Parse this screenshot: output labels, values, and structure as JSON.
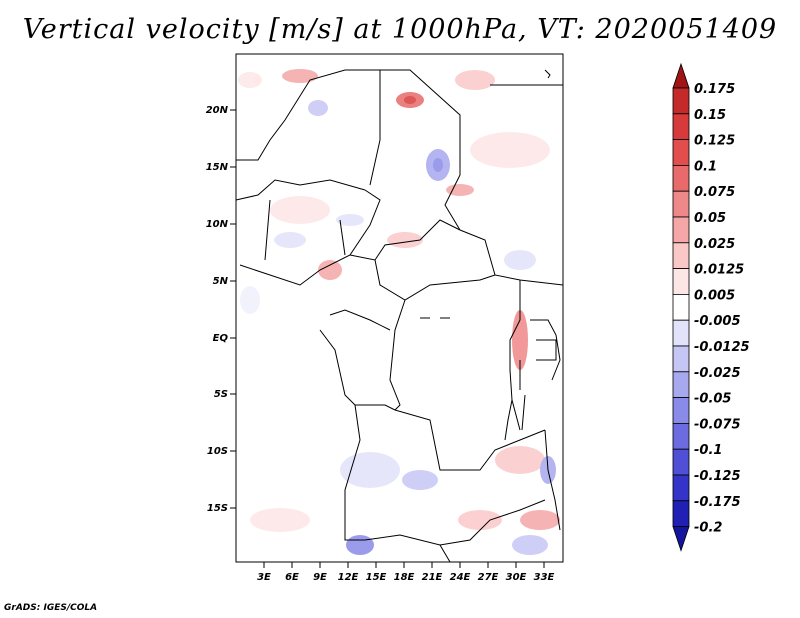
{
  "title": "Vertical velocity [m/s] at 1000hPa, VT: 2020051409",
  "credit": "GrADS: IGES/COLA",
  "axes": {
    "lat_ticks": [
      "20N",
      "15N",
      "10N",
      "5N",
      "EQ",
      "5S",
      "10S",
      "15S"
    ],
    "lon_ticks": [
      "3E",
      "6E",
      "9E",
      "12E",
      "15E",
      "18E",
      "21E",
      "24E",
      "27E",
      "30E",
      "33E"
    ]
  },
  "colorbar": {
    "levels": [
      {
        "label": "0.175",
        "color": "#b21e1e"
      },
      {
        "label": "0.15",
        "color": "#c42a2a"
      },
      {
        "label": "0.125",
        "color": "#d63a3a"
      },
      {
        "label": "0.1",
        "color": "#e24e4e"
      },
      {
        "label": "0.075",
        "color": "#e86a6a"
      },
      {
        "label": "0.05",
        "color": "#ef8888"
      },
      {
        "label": "0.025",
        "color": "#f5a6a6"
      },
      {
        "label": "0.0125",
        "color": "#fbc8c8"
      },
      {
        "label": "0.005",
        "color": "#fde6e6"
      },
      {
        "label": "-0.005",
        "color": "#ffffff"
      },
      {
        "label": "-0.0125",
        "color": "#e2e2fb"
      },
      {
        "label": "-0.025",
        "color": "#c6c6f5"
      },
      {
        "label": "-0.05",
        "color": "#a8a8ef"
      },
      {
        "label": "-0.075",
        "color": "#8a8ae8"
      },
      {
        "label": "-0.1",
        "color": "#6c6ce0"
      },
      {
        "label": "-0.125",
        "color": "#5050d6"
      },
      {
        "label": "-0.175",
        "color": "#3434c8"
      },
      {
        "label": "-0.2",
        "color": "#2020b4"
      }
    ],
    "top_color": "#a01414",
    "bottom_color": "#14149e"
  }
}
